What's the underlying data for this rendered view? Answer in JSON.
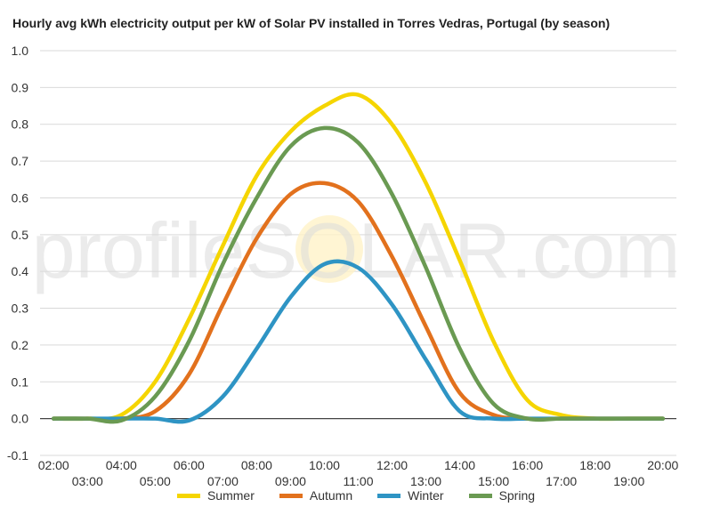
{
  "chart_data": {
    "type": "line",
    "title": "Hourly avg kWh electricity output per kW of Solar PV installed in Torres Vedras, Portugal (by season)",
    "watermark": "profileSOLAR.com",
    "xlabel": "",
    "ylabel": "",
    "ylim": [
      -0.1,
      1.0
    ],
    "yticks": [
      "1.0",
      "0.9",
      "0.8",
      "0.7",
      "0.6",
      "0.5",
      "0.4",
      "0.3",
      "0.2",
      "0.1",
      "0.0",
      "-0.1"
    ],
    "ytick_values": [
      1.0,
      0.9,
      0.8,
      0.7,
      0.6,
      0.5,
      0.4,
      0.3,
      0.2,
      0.1,
      0.0,
      -0.1
    ],
    "x_labels_upper": [
      "02:00",
      "04:00",
      "06:00",
      "08:00",
      "10:00",
      "12:00",
      "14:00",
      "16:00",
      "18:00",
      "20:00"
    ],
    "x_labels_lower": [
      "03:00",
      "05:00",
      "07:00",
      "09:00",
      "11:00",
      "13:00",
      "15:00",
      "17:00",
      "19:00"
    ],
    "x_hours": [
      2,
      3,
      4,
      5,
      6,
      7,
      8,
      9,
      10,
      11,
      12,
      13,
      14,
      15,
      16,
      17,
      18,
      19,
      20
    ],
    "grid": true,
    "legend_position": "bottom",
    "series": [
      {
        "name": "Summer",
        "color": "#F5D500",
        "values": [
          0,
          0,
          0.01,
          0.1,
          0.27,
          0.47,
          0.66,
          0.78,
          0.85,
          0.88,
          0.8,
          0.64,
          0.43,
          0.21,
          0.05,
          0.01,
          0,
          0,
          0
        ]
      },
      {
        "name": "Autumn",
        "color": "#E2711D",
        "values": [
          0,
          0,
          0,
          0.02,
          0.12,
          0.31,
          0.49,
          0.61,
          0.64,
          0.59,
          0.44,
          0.25,
          0.07,
          0.01,
          0,
          0,
          0,
          0,
          0
        ]
      },
      {
        "name": "Winter",
        "color": "#2E94C4",
        "values": [
          0,
          0,
          0,
          0,
          -0.005,
          0.06,
          0.19,
          0.33,
          0.42,
          0.41,
          0.31,
          0.16,
          0.02,
          0,
          0,
          0,
          0,
          0,
          0
        ]
      },
      {
        "name": "Spring",
        "color": "#6A9A52",
        "values": [
          0,
          0,
          -0.005,
          0.06,
          0.21,
          0.42,
          0.6,
          0.74,
          0.79,
          0.75,
          0.61,
          0.41,
          0.19,
          0.04,
          0,
          0,
          0,
          0,
          0
        ]
      }
    ]
  }
}
